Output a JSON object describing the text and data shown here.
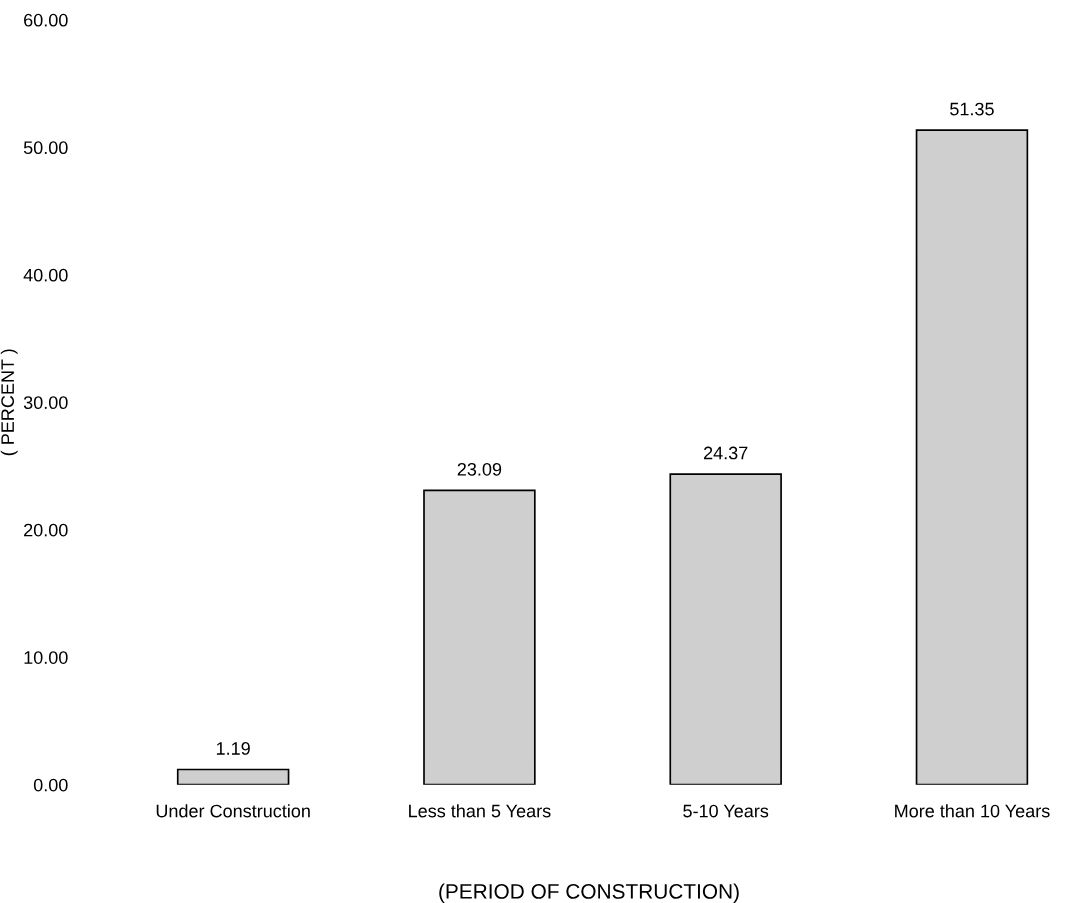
{
  "chart_data": {
    "type": "bar",
    "xlabel": "(PERIOD OF CONSTRUCTION)",
    "ylabel": "( PERCENT )",
    "categories": [
      "Under Construction",
      "Less than 5 Years",
      "5-10 Years",
      "More than 10 Years"
    ],
    "values": [
      1.19,
      23.09,
      24.37,
      51.35
    ],
    "color": "#cfcfcf",
    "ylim": [
      0,
      60
    ],
    "yticks": [
      {
        "value": 0,
        "label": "0.00"
      },
      {
        "value": 10,
        "label": "10.00"
      },
      {
        "value": 20,
        "label": "20.00"
      },
      {
        "value": 30,
        "label": "30.00"
      },
      {
        "value": 40,
        "label": "40.00"
      },
      {
        "value": 50,
        "label": "50.00"
      },
      {
        "value": 60,
        "label": "60.00"
      }
    ],
    "data_labels": true,
    "grid": false,
    "legend": false
  }
}
